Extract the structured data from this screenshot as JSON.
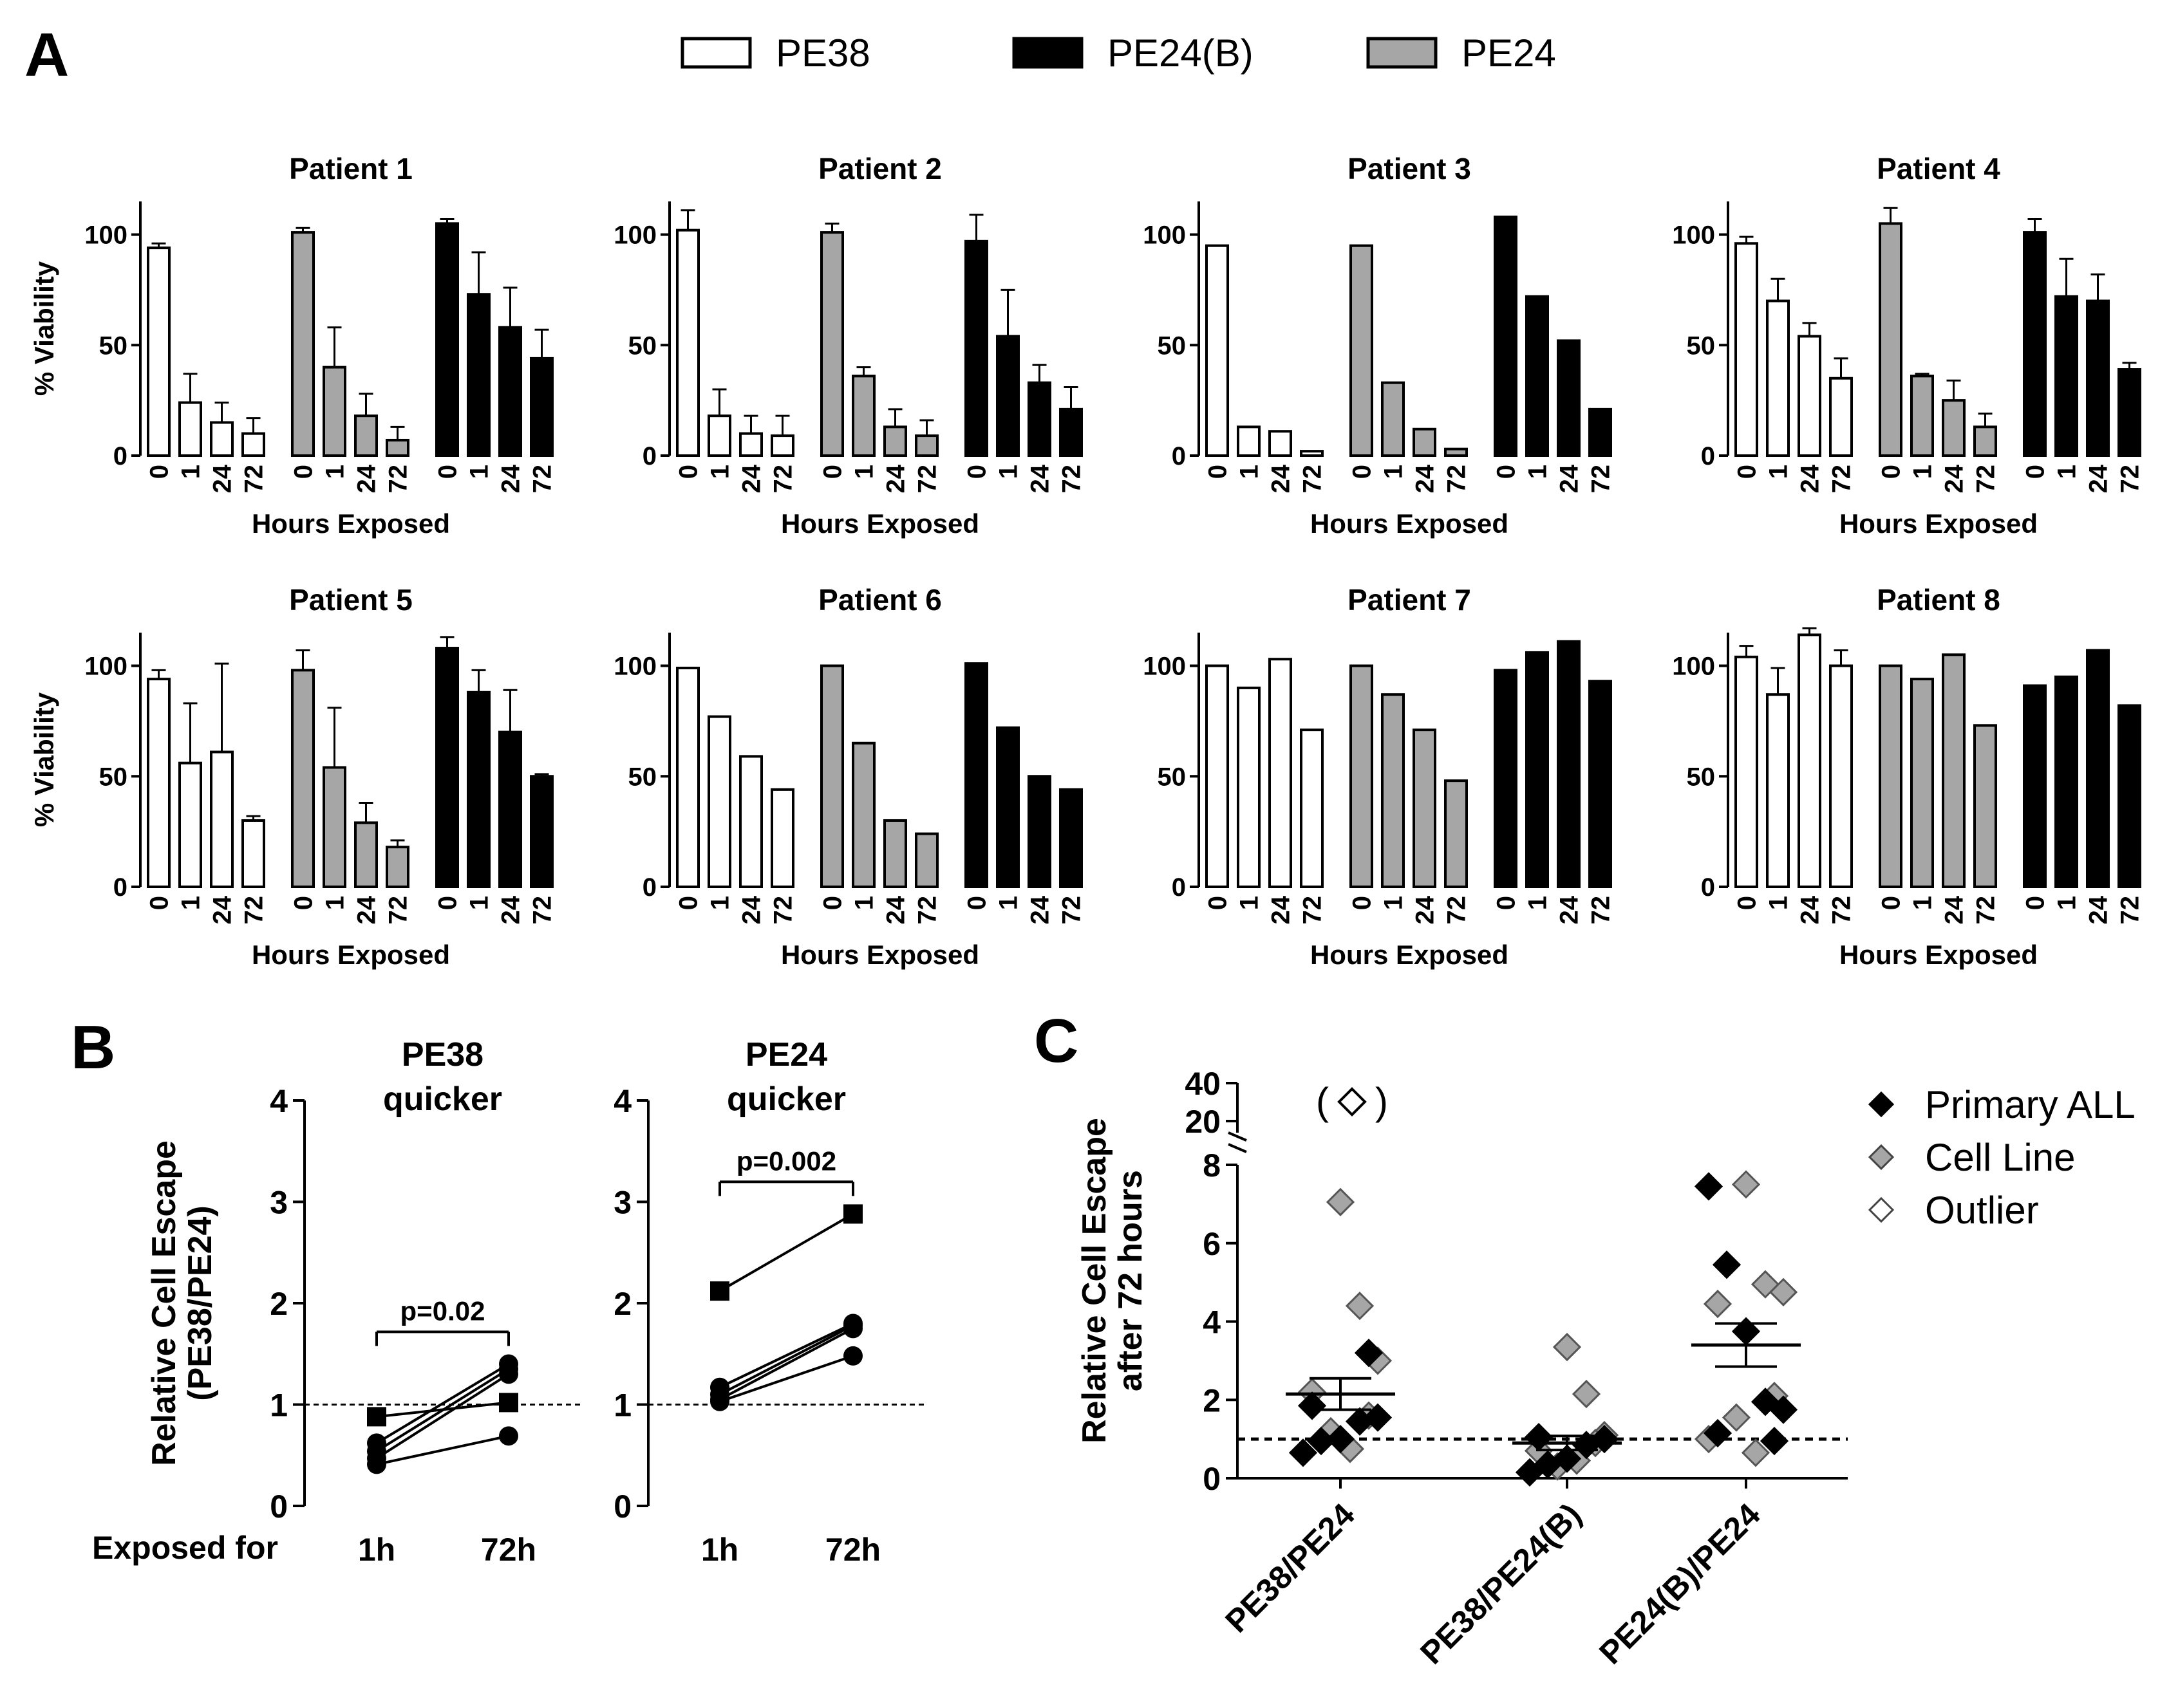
{
  "panel_labels": {
    "a": "A",
    "b": "B",
    "c": "C"
  },
  "colors": {
    "PE38": "#ffffff",
    "PE24(B)": "#000000",
    "PE24": "#a6a6a6",
    "outline": "#000000"
  },
  "legend": [
    {
      "label": "PE38",
      "color": "#ffffff"
    },
    {
      "label": "PE24(B)",
      "color": "#000000"
    },
    {
      "label": "PE24",
      "color": "#a6a6a6"
    }
  ],
  "chart_data": [
    {
      "id": "panel-a",
      "type": "bar",
      "ylabel": "% Viability",
      "xlabel": "Hours Exposed",
      "categories": [
        "0",
        "1",
        "24",
        "72"
      ],
      "group_order": [
        "PE38",
        "PE24",
        "PE24(B)"
      ],
      "yticks": [
        "0",
        "50",
        "100"
      ],
      "ylim": [
        0,
        115
      ],
      "patients": [
        {
          "title": "Patient 1",
          "series": [
            {
              "name": "PE38",
              "values": [
                94,
                24,
                15,
                10
              ],
              "errors": [
                2,
                13,
                9,
                7
              ]
            },
            {
              "name": "PE24",
              "values": [
                101,
                40,
                18,
                7
              ],
              "errors": [
                2,
                18,
                10,
                6
              ]
            },
            {
              "name": "PE24(B)",
              "values": [
                105,
                73,
                58,
                44
              ],
              "errors": [
                2,
                19,
                18,
                13
              ]
            }
          ]
        },
        {
          "title": "Patient 2",
          "series": [
            {
              "name": "PE38",
              "values": [
                102,
                18,
                10,
                9
              ],
              "errors": [
                9,
                12,
                8,
                9
              ]
            },
            {
              "name": "PE24",
              "values": [
                101,
                36,
                13,
                9
              ],
              "errors": [
                4,
                4,
                8,
                7
              ]
            },
            {
              "name": "PE24(B)",
              "values": [
                97,
                54,
                33,
                21
              ],
              "errors": [
                12,
                21,
                8,
                10
              ]
            }
          ]
        },
        {
          "title": "Patient 3",
          "series": [
            {
              "name": "PE38",
              "values": [
                95,
                13,
                11,
                2
              ],
              "errors": null
            },
            {
              "name": "PE24",
              "values": [
                95,
                33,
                12,
                3
              ],
              "errors": null
            },
            {
              "name": "PE24(B)",
              "values": [
                108,
                72,
                52,
                21
              ],
              "errors": null
            }
          ]
        },
        {
          "title": "Patient 4",
          "series": [
            {
              "name": "PE38",
              "values": [
                96,
                70,
                54,
                35
              ],
              "errors": [
                3,
                10,
                6,
                9
              ]
            },
            {
              "name": "PE24",
              "values": [
                105,
                36,
                25,
                13
              ],
              "errors": [
                7,
                1,
                9,
                6
              ]
            },
            {
              "name": "PE24(B)",
              "values": [
                101,
                72,
                70,
                39
              ],
              "errors": [
                6,
                17,
                12,
                3
              ]
            }
          ]
        },
        {
          "title": "Patient 5",
          "series": [
            {
              "name": "PE38",
              "values": [
                94,
                56,
                61,
                30
              ],
              "errors": [
                4,
                27,
                40,
                2
              ]
            },
            {
              "name": "PE24",
              "values": [
                98,
                54,
                29,
                18
              ],
              "errors": [
                9,
                27,
                9,
                3
              ]
            },
            {
              "name": "PE24(B)",
              "values": [
                108,
                88,
                70,
                50
              ],
              "errors": [
                5,
                10,
                19,
                1
              ]
            }
          ]
        },
        {
          "title": "Patient 6",
          "series": [
            {
              "name": "PE38",
              "values": [
                99,
                77,
                59,
                44
              ],
              "errors": null
            },
            {
              "name": "PE24",
              "values": [
                100,
                65,
                30,
                24
              ],
              "errors": null
            },
            {
              "name": "PE24(B)",
              "values": [
                101,
                72,
                50,
                44
              ],
              "errors": null
            }
          ]
        },
        {
          "title": "Patient 7",
          "series": [
            {
              "name": "PE38",
              "values": [
                100,
                90,
                103,
                71
              ],
              "errors": null
            },
            {
              "name": "PE24",
              "values": [
                100,
                87,
                71,
                48
              ],
              "errors": null
            },
            {
              "name": "PE24(B)",
              "values": [
                98,
                106,
                111,
                93
              ],
              "errors": null
            }
          ]
        },
        {
          "title": "Patient 8",
          "series": [
            {
              "name": "PE38",
              "values": [
                104,
                87,
                114,
                100
              ],
              "errors": [
                5,
                12,
                3,
                7
              ]
            },
            {
              "name": "PE24",
              "values": [
                100,
                94,
                105,
                73
              ],
              "errors": null
            },
            {
              "name": "PE24(B)",
              "values": [
                91,
                95,
                107,
                82
              ],
              "errors": null
            }
          ]
        }
      ]
    },
    {
      "id": "panel-b",
      "type": "line",
      "ylabel_line1": "Relative Cell Escape",
      "ylabel_line2": "(PE38/PE24)",
      "row_label": "Exposed for",
      "x": [
        "1h",
        "72h"
      ],
      "yticks": [
        "0",
        "1",
        "2",
        "3",
        "4"
      ],
      "ylim": [
        0,
        4
      ],
      "reference_line": 1,
      "subplots": [
        {
          "title_line1": "PE38",
          "title_line2": "quicker",
          "pvalue": "p=0.02",
          "series": [
            {
              "marker": "square",
              "values": [
                0.88,
                1.02
              ]
            },
            {
              "marker": "circle",
              "values": [
                0.62,
                1.4
              ]
            },
            {
              "marker": "circle",
              "values": [
                0.54,
                1.35
              ]
            },
            {
              "marker": "circle",
              "values": [
                0.47,
                1.3
              ]
            },
            {
              "marker": "circle",
              "values": [
                0.41,
                0.69
              ]
            }
          ]
        },
        {
          "title_line1": "PE24",
          "title_line2": "quicker",
          "pvalue": "p=0.002",
          "series": [
            {
              "marker": "square",
              "values": [
                2.12,
                2.88
              ]
            },
            {
              "marker": "circle",
              "values": [
                1.17,
                1.8
              ]
            },
            {
              "marker": "circle",
              "values": [
                1.1,
                1.78
              ]
            },
            {
              "marker": "circle",
              "values": [
                1.05,
                1.75
              ]
            },
            {
              "marker": "circle",
              "values": [
                1.03,
                1.48
              ]
            }
          ]
        }
      ]
    },
    {
      "id": "panel-c",
      "type": "scatter",
      "ylabel_line1": "Relative Cell Escape",
      "ylabel_line2": "after 72 hours",
      "categories": [
        "PE38/PE24",
        "PE38/PE24(B)",
        "PE24(B)/PE24"
      ],
      "yticks": [
        "0",
        "2",
        "4",
        "6",
        "8"
      ],
      "yticks_broken": [
        "20",
        "40"
      ],
      "ylim": [
        0,
        8
      ],
      "reference_line": 1,
      "legend": [
        {
          "label": "Primary ALL",
          "color": "#000000"
        },
        {
          "label": "Cell Line",
          "color": "#a6a6a6"
        },
        {
          "label": "Outlier",
          "color": "#ffffff"
        }
      ],
      "outlier": {
        "category": "PE38/PE24",
        "value": 38,
        "label_open": "(",
        "label_close": ")"
      },
      "groups": [
        {
          "category": "PE38/PE24",
          "mean": 2.15,
          "sem_low": 1.75,
          "sem_high": 2.55,
          "primary": [
            0.65,
            0.95,
            1.0,
            1.45,
            1.55,
            1.85,
            3.2
          ],
          "cell_line": [
            7.05,
            4.4,
            3.0,
            2.2,
            1.6,
            1.2,
            0.75
          ]
        },
        {
          "category": "PE38/PE24(B)",
          "mean": 0.9,
          "sem_low": 0.72,
          "sem_high": 1.08,
          "primary": [
            0.15,
            0.35,
            0.5,
            0.85,
            1.0,
            1.05
          ],
          "cell_line": [
            3.35,
            2.15,
            1.1,
            0.7,
            0.9,
            0.3,
            0.45
          ]
        },
        {
          "category": "PE24(B)/PE24",
          "mean": 3.4,
          "sem_low": 2.85,
          "sem_high": 3.95,
          "primary": [
            7.45,
            5.45,
            3.75,
            1.95,
            1.75,
            1.15,
            0.95
          ],
          "cell_line": [
            7.5,
            4.95,
            4.75,
            4.45,
            2.1,
            1.55,
            0.65,
            1.0
          ]
        }
      ]
    }
  ]
}
